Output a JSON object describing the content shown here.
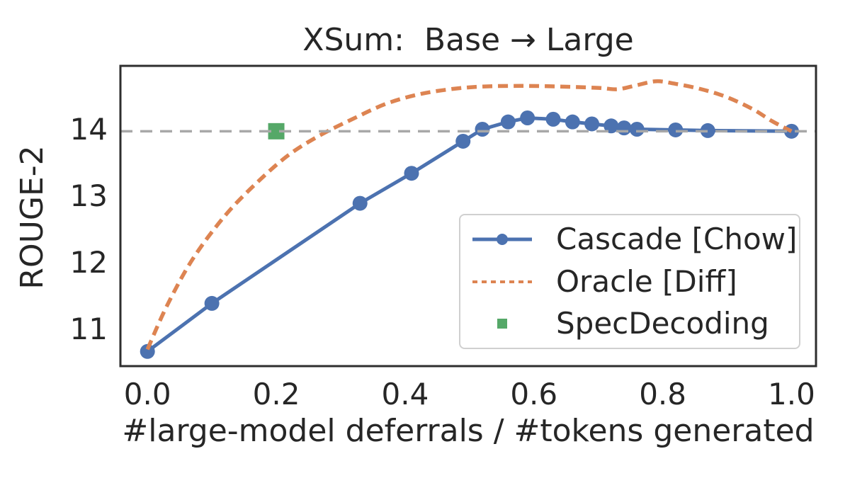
{
  "chart_data": {
    "type": "line",
    "title": "XSum:  Base → Large",
    "xlabel": "#large-model deferrals / #tokens generated",
    "ylabel": "ROUGE-2",
    "xlim": [
      -0.042,
      1.038
    ],
    "ylim": [
      10.45,
      14.95
    ],
    "x_tick_values": [
      0.0,
      0.2,
      0.4,
      0.6,
      0.8,
      1.0
    ],
    "x_tick_labels": [
      "0.0",
      "0.2",
      "0.4",
      "0.6",
      "0.8",
      "1.0"
    ],
    "y_tick_values": [
      11,
      12,
      13,
      14
    ],
    "y_tick_labels": [
      "11",
      "12",
      "13",
      "14"
    ],
    "grid": false,
    "legend_position": "lower right inside axes",
    "baseline": {
      "y": 13.97,
      "style": "dashed",
      "color": "#a8a8a8"
    },
    "series": [
      {
        "name": "Cascade [Chow]",
        "type": "line+markers",
        "marker": "circle",
        "color": "#4C72B0",
        "x": [
          0.0,
          0.1,
          0.33,
          0.41,
          0.49,
          0.52,
          0.56,
          0.59,
          0.63,
          0.66,
          0.69,
          0.72,
          0.74,
          0.76,
          0.82,
          0.87,
          1.0
        ],
        "y": [
          10.67,
          11.39,
          12.89,
          13.34,
          13.82,
          14.0,
          14.11,
          14.17,
          14.15,
          14.11,
          14.08,
          14.05,
          14.02,
          14.0,
          13.99,
          13.98,
          13.97
        ]
      },
      {
        "name": "Oracle [Diff]",
        "type": "dashed-line",
        "color": "#DD8452",
        "x": [
          0.0,
          0.03,
          0.07,
          0.12,
          0.17,
          0.22,
          0.27,
          0.32,
          0.37,
          0.42,
          0.47,
          0.52,
          0.58,
          0.64,
          0.7,
          0.73,
          0.76,
          0.79,
          0.82,
          0.86,
          0.9,
          0.94,
          0.97,
          1.0
        ],
        "y": [
          10.7,
          11.35,
          12.05,
          12.7,
          13.2,
          13.62,
          13.92,
          14.16,
          14.38,
          14.52,
          14.6,
          14.64,
          14.65,
          14.64,
          14.62,
          14.6,
          14.66,
          14.72,
          14.68,
          14.6,
          14.48,
          14.3,
          14.12,
          13.97
        ]
      },
      {
        "name": "SpecDecoding",
        "type": "scatter",
        "marker": "square",
        "color": "#55A868",
        "x": [
          0.2
        ],
        "y": [
          13.97
        ]
      }
    ]
  },
  "colors": {
    "text": "#262626",
    "spine": "#2e2e2e",
    "baseline": "#a8a8a8",
    "legend_border": "#d0d0d0",
    "background": "#ffffff"
  }
}
